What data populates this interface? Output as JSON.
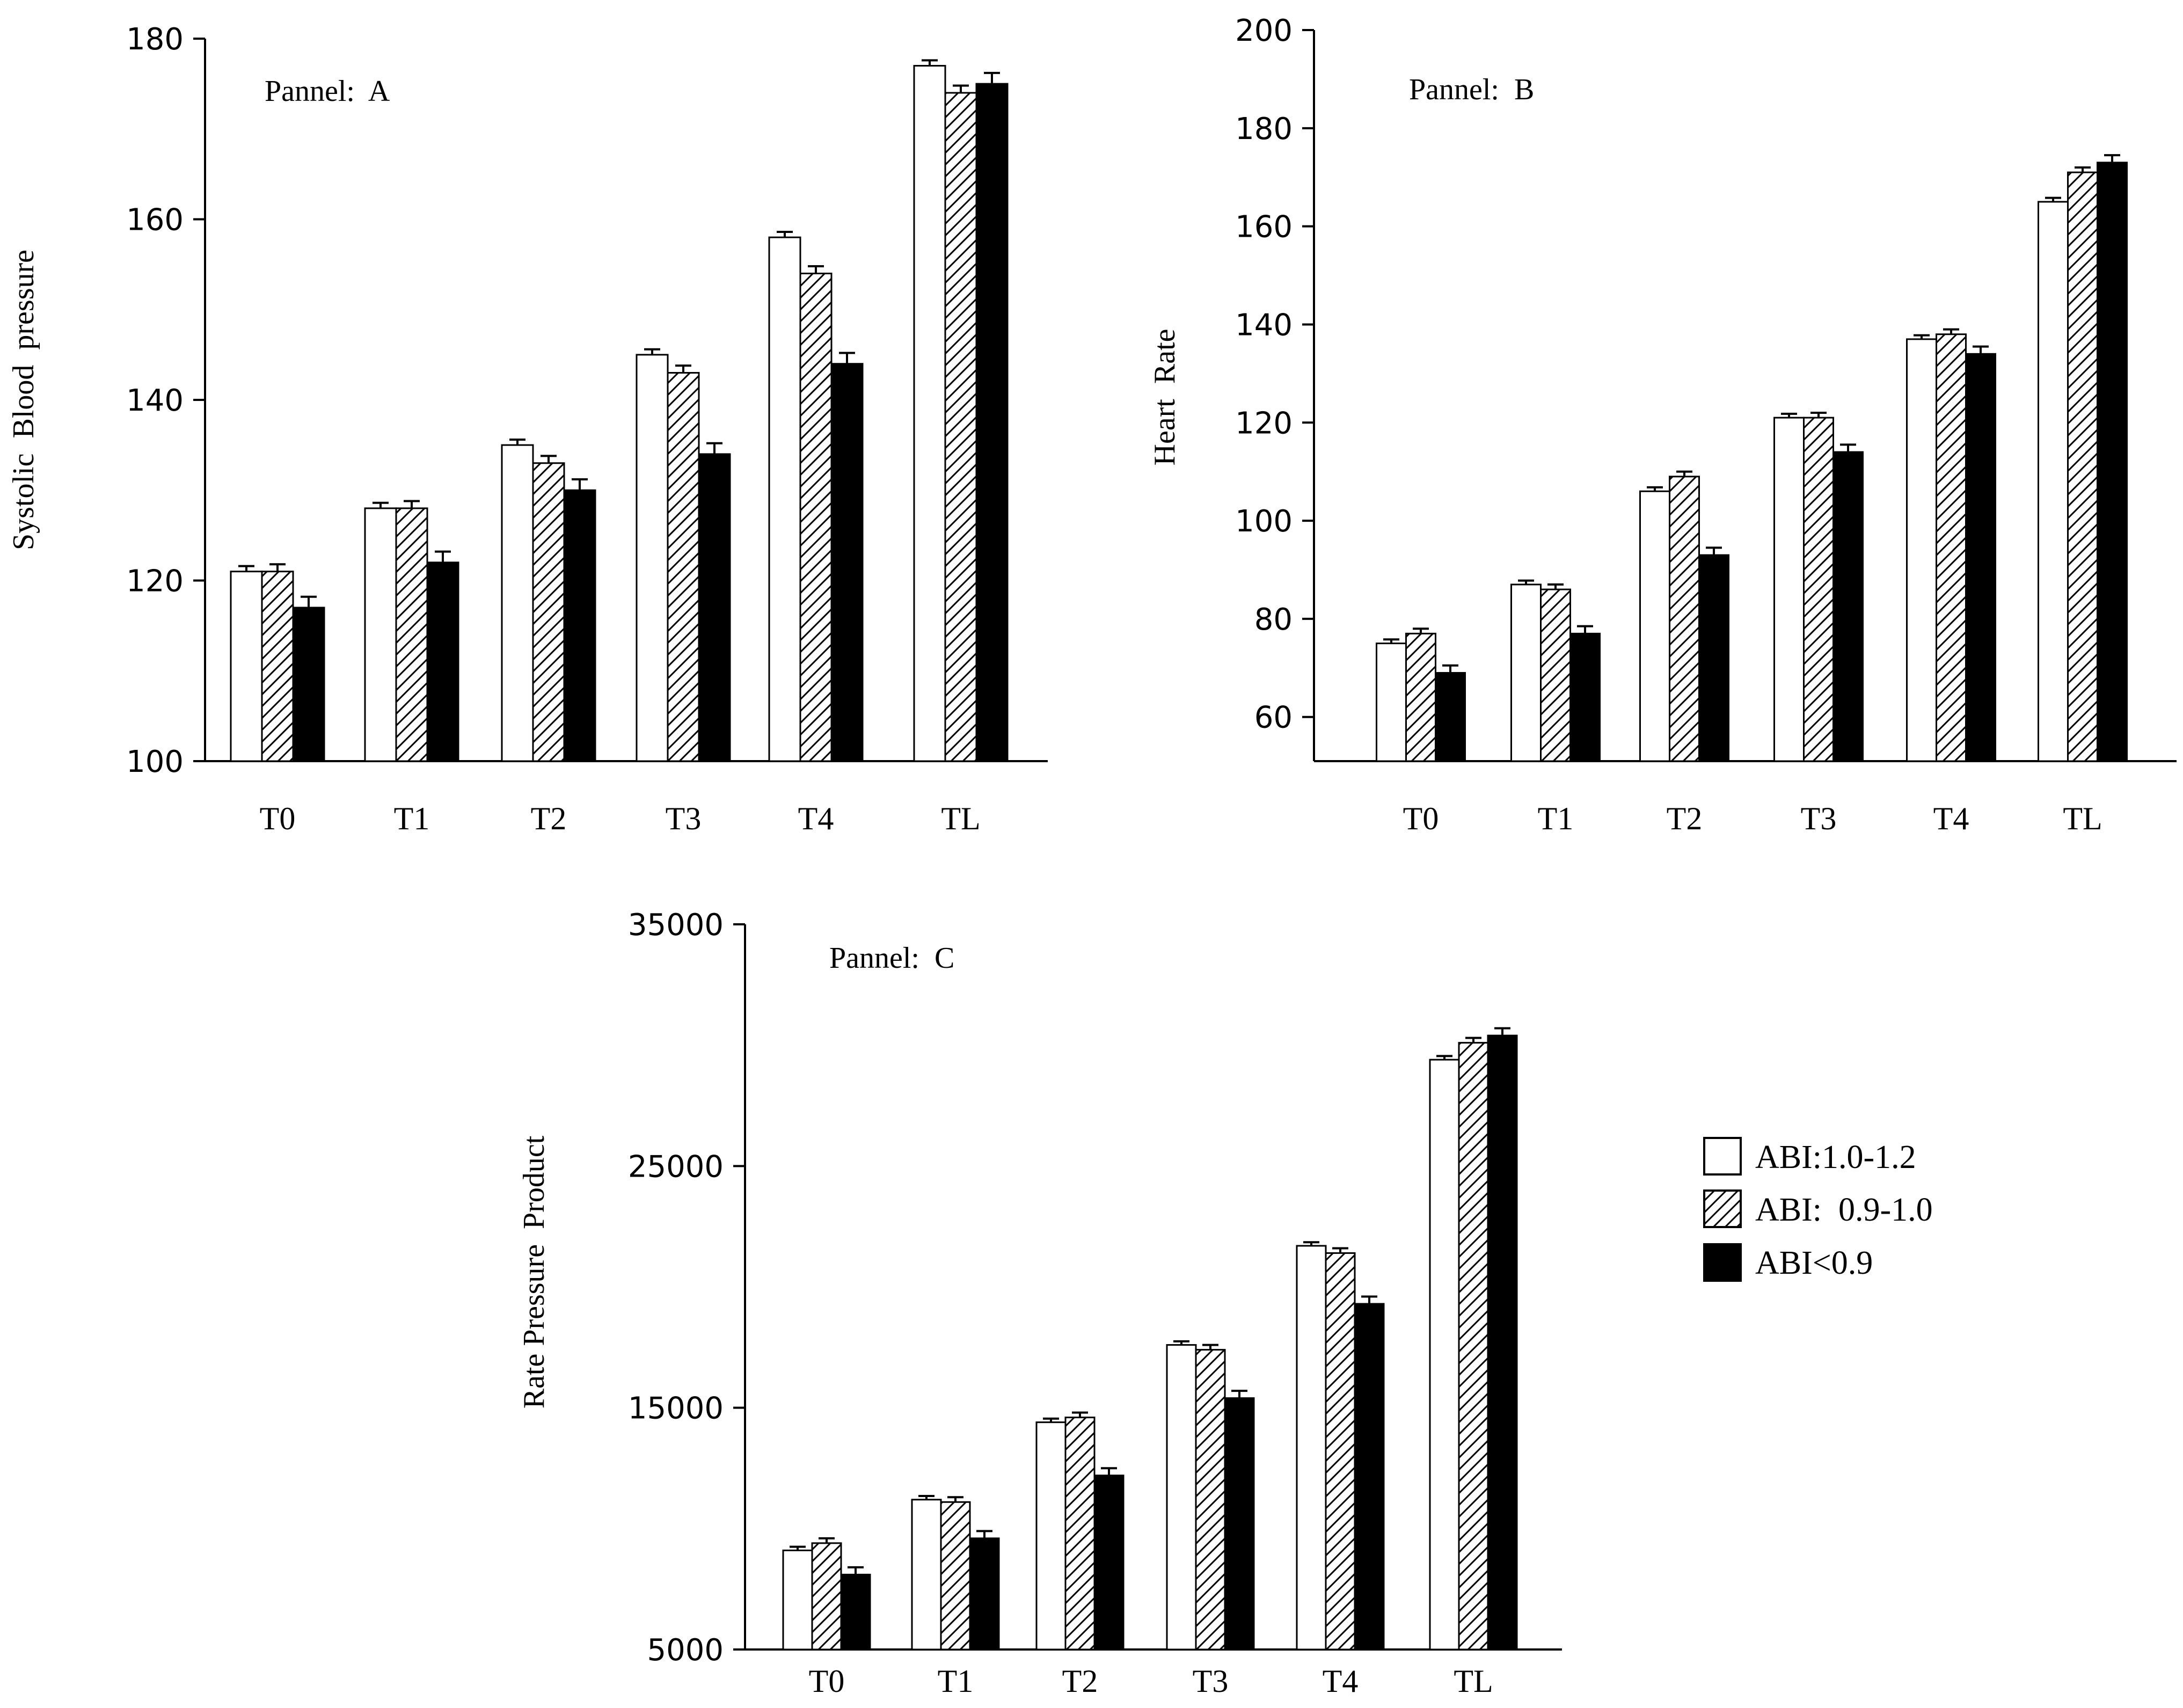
{
  "chart_data": [
    {
      "type": "bar",
      "title": "Pannel:  A",
      "xlabel": "",
      "ylabel": "Systolic  Blood  pressure",
      "categories": [
        "T0",
        "T1",
        "T2",
        "T3",
        "T4",
        "TL"
      ],
      "ylim": [
        100,
        180
      ],
      "yticks": [
        100,
        120,
        140,
        160,
        180
      ],
      "series": [
        {
          "name": "ABI:1.0-1.2",
          "values": [
            121,
            128,
            135,
            145,
            158,
            177
          ],
          "errors": [
            0.6,
            0.6,
            0.6,
            0.6,
            0.6,
            0.6
          ]
        },
        {
          "name": "ABI:  0.9-1.0",
          "values": [
            121,
            128,
            133,
            143,
            154,
            174
          ],
          "errors": [
            0.8,
            0.8,
            0.8,
            0.8,
            0.8,
            0.8
          ]
        },
        {
          "name": "ABI<0.9",
          "values": [
            117,
            122,
            130,
            134,
            144,
            175
          ],
          "errors": [
            1.2,
            1.2,
            1.2,
            1.2,
            1.2,
            1.2
          ]
        }
      ]
    },
    {
      "type": "bar",
      "title": "Pannel:  B",
      "xlabel": "",
      "ylabel": "Heart  Rate",
      "categories": [
        "T0",
        "T1",
        "T2",
        "T3",
        "T4",
        "TL"
      ],
      "ylim": [
        51,
        200
      ],
      "yticks": [
        60,
        80,
        100,
        120,
        140,
        160,
        180,
        200
      ],
      "series": [
        {
          "name": "ABI:1.0-1.2",
          "values": [
            75,
            87,
            106,
            121,
            137,
            165
          ],
          "errors": [
            0.8,
            0.8,
            0.8,
            0.8,
            0.8,
            0.8
          ]
        },
        {
          "name": "ABI:  0.9-1.0",
          "values": [
            77,
            86,
            109,
            121,
            138,
            171
          ],
          "errors": [
            1,
            1,
            1,
            1,
            1,
            1
          ]
        },
        {
          "name": "ABI<0.9",
          "values": [
            69,
            77,
            93,
            114,
            134,
            173
          ],
          "errors": [
            1.5,
            1.5,
            1.5,
            1.5,
            1.5,
            1.5
          ]
        }
      ]
    },
    {
      "type": "bar",
      "title": "Pannel:  C",
      "xlabel": "",
      "ylabel": "Rate Pressure  Product",
      "categories": [
        "T0",
        "T1",
        "T2",
        "T3",
        "T4",
        "TL"
      ],
      "ylim": [
        5000,
        35000
      ],
      "yticks": [
        5000,
        15000,
        25000,
        35000
      ],
      "series": [
        {
          "name": "ABI:1.0-1.2",
          "values": [
            9100,
            11200,
            14400,
            17600,
            21700,
            29400
          ],
          "errors": [
            150,
            150,
            150,
            150,
            150,
            150
          ]
        },
        {
          "name": "ABI:  0.9-1.0",
          "values": [
            9400,
            11100,
            14600,
            17400,
            21400,
            30100
          ],
          "errors": [
            200,
            200,
            200,
            200,
            200,
            200
          ]
        },
        {
          "name": "ABI<0.9",
          "values": [
            8100,
            9600,
            12200,
            15400,
            19300,
            30400
          ],
          "errors": [
            300,
            300,
            300,
            300,
            300,
            300
          ]
        }
      ]
    }
  ],
  "legend": {
    "items": [
      {
        "label": "ABI:1.0-1.2",
        "pattern": "white"
      },
      {
        "label": "ABI:  0.9-1.0",
        "pattern": "hatched"
      },
      {
        "label": "ABI<0.9",
        "pattern": "black"
      }
    ]
  },
  "colors": {
    "bar_fill_dark": "#000000",
    "bar_fill_light": "#ffffff",
    "stroke": "#000000"
  }
}
